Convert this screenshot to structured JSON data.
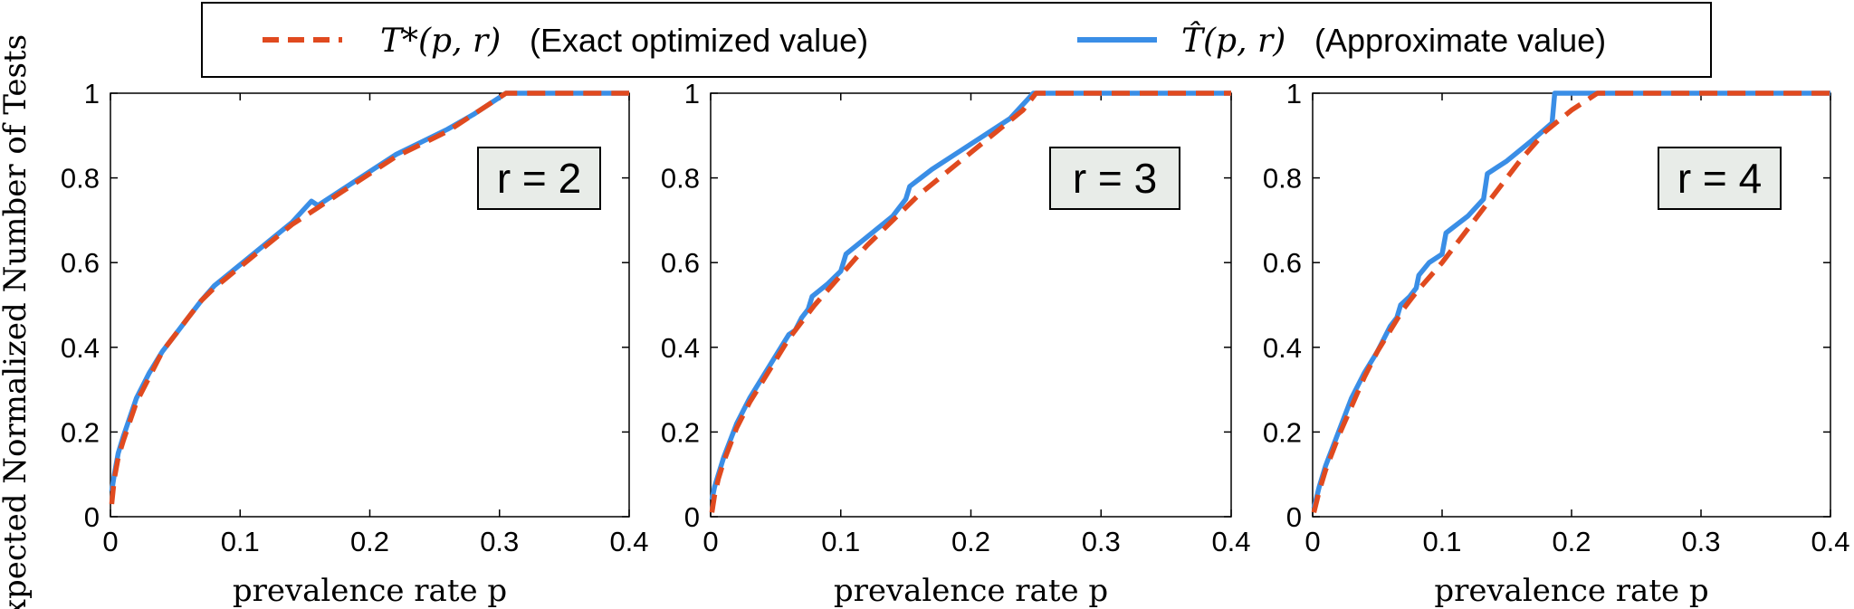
{
  "legend": {
    "entries": [
      {
        "symbol": "T*(p, r)",
        "label": "(Exact optimized value)",
        "color": "#e04a1f",
        "style": "dashed"
      },
      {
        "symbol": "T̂(p, r)",
        "label": "(Approximate value)",
        "color": "#3a8ee6",
        "style": "solid"
      }
    ]
  },
  "ylabel": "Expected Normalized Number of Tests",
  "colors": {
    "exact": "#e04a1f",
    "approx": "#3a8ee6",
    "annotation_bg": "#e8ece8"
  },
  "chart_data": [
    {
      "type": "line",
      "annotation": "r = 2",
      "xlabel": "prevalence rate p",
      "xlim": [
        0,
        0.4
      ],
      "ylim": [
        0,
        1
      ],
      "xticks": [
        "0",
        "0.1",
        "0.2",
        "0.3",
        "0.4"
      ],
      "yticks": [
        "0",
        "0.2",
        "0.4",
        "0.6",
        "0.8",
        "1"
      ],
      "series": [
        {
          "name": "T*(p, r)",
          "points": [
            [
              0.001,
              0.03
            ],
            [
              0.003,
              0.09
            ],
            [
              0.006,
              0.14
            ],
            [
              0.01,
              0.18
            ],
            [
              0.02,
              0.27
            ],
            [
              0.03,
              0.33
            ],
            [
              0.04,
              0.39
            ],
            [
              0.05,
              0.43
            ],
            [
              0.06,
              0.47
            ],
            [
              0.07,
              0.51
            ],
            [
              0.08,
              0.54
            ],
            [
              0.1,
              0.59
            ],
            [
              0.12,
              0.64
            ],
            [
              0.14,
              0.69
            ],
            [
              0.16,
              0.73
            ],
            [
              0.18,
              0.77
            ],
            [
              0.2,
              0.81
            ],
            [
              0.22,
              0.85
            ],
            [
              0.24,
              0.88
            ],
            [
              0.26,
              0.91
            ],
            [
              0.28,
              0.95
            ],
            [
              0.305,
              1.0
            ],
            [
              0.4,
              1.0
            ]
          ]
        },
        {
          "name": "T̂(p, r)",
          "points": [
            [
              0.001,
              0.06
            ],
            [
              0.003,
              0.1
            ],
            [
              0.006,
              0.15
            ],
            [
              0.01,
              0.19
            ],
            [
              0.02,
              0.28
            ],
            [
              0.03,
              0.34
            ],
            [
              0.04,
              0.39
            ],
            [
              0.05,
              0.43
            ],
            [
              0.06,
              0.47
            ],
            [
              0.07,
              0.51
            ],
            [
              0.08,
              0.545
            ],
            [
              0.1,
              0.595
            ],
            [
              0.12,
              0.645
            ],
            [
              0.14,
              0.695
            ],
            [
              0.155,
              0.745
            ],
            [
              0.16,
              0.735
            ],
            [
              0.18,
              0.775
            ],
            [
              0.2,
              0.815
            ],
            [
              0.22,
              0.855
            ],
            [
              0.24,
              0.885
            ],
            [
              0.26,
              0.915
            ],
            [
              0.28,
              0.95
            ],
            [
              0.305,
              1.0
            ],
            [
              0.4,
              1.0
            ]
          ]
        }
      ]
    },
    {
      "type": "line",
      "annotation": "r = 3",
      "xlabel": "prevalence rate p",
      "xlim": [
        0,
        0.4
      ],
      "ylim": [
        0,
        1
      ],
      "xticks": [
        "0",
        "0.1",
        "0.2",
        "0.3",
        "0.4"
      ],
      "yticks": [
        "0",
        "0.2",
        "0.4",
        "0.6",
        "0.8",
        "1"
      ],
      "series": [
        {
          "name": "T*(p, r)",
          "points": [
            [
              0.001,
              0.01
            ],
            [
              0.003,
              0.05
            ],
            [
              0.006,
              0.09
            ],
            [
              0.01,
              0.13
            ],
            [
              0.02,
              0.21
            ],
            [
              0.03,
              0.27
            ],
            [
              0.04,
              0.32
            ],
            [
              0.05,
              0.37
            ],
            [
              0.06,
              0.42
            ],
            [
              0.07,
              0.46
            ],
            [
              0.08,
              0.5
            ],
            [
              0.1,
              0.57
            ],
            [
              0.12,
              0.64
            ],
            [
              0.14,
              0.7
            ],
            [
              0.16,
              0.76
            ],
            [
              0.18,
              0.81
            ],
            [
              0.2,
              0.86
            ],
            [
              0.22,
              0.91
            ],
            [
              0.24,
              0.96
            ],
            [
              0.25,
              1.0
            ],
            [
              0.4,
              1.0
            ]
          ]
        },
        {
          "name": "T̂(p, r)",
          "points": [
            [
              0.001,
              0.04
            ],
            [
              0.003,
              0.07
            ],
            [
              0.006,
              0.1
            ],
            [
              0.01,
              0.14
            ],
            [
              0.02,
              0.22
            ],
            [
              0.03,
              0.28
            ],
            [
              0.04,
              0.33
            ],
            [
              0.05,
              0.38
            ],
            [
              0.06,
              0.43
            ],
            [
              0.065,
              0.44
            ],
            [
              0.07,
              0.47
            ],
            [
              0.075,
              0.49
            ],
            [
              0.078,
              0.52
            ],
            [
              0.09,
              0.55
            ],
            [
              0.1,
              0.58
            ],
            [
              0.104,
              0.62
            ],
            [
              0.12,
              0.66
            ],
            [
              0.14,
              0.71
            ],
            [
              0.15,
              0.75
            ],
            [
              0.153,
              0.78
            ],
            [
              0.17,
              0.82
            ],
            [
              0.19,
              0.86
            ],
            [
              0.21,
              0.9
            ],
            [
              0.23,
              0.94
            ],
            [
              0.248,
              1.0
            ],
            [
              0.4,
              1.0
            ]
          ]
        }
      ]
    },
    {
      "type": "line",
      "annotation": "r = 4",
      "xlabel": "prevalence rate p",
      "xlim": [
        0,
        0.4
      ],
      "ylim": [
        0,
        1
      ],
      "xticks": [
        "0",
        "0.1",
        "0.2",
        "0.3",
        "0.4"
      ],
      "yticks": [
        "0",
        "0.2",
        "0.4",
        "0.6",
        "0.8",
        "1"
      ],
      "series": [
        {
          "name": "T*(p, r)",
          "points": [
            [
              0.001,
              0.01
            ],
            [
              0.005,
              0.06
            ],
            [
              0.01,
              0.11
            ],
            [
              0.02,
              0.19
            ],
            [
              0.03,
              0.26
            ],
            [
              0.04,
              0.33
            ],
            [
              0.05,
              0.39
            ],
            [
              0.06,
              0.44
            ],
            [
              0.07,
              0.49
            ],
            [
              0.08,
              0.53
            ],
            [
              0.1,
              0.6
            ],
            [
              0.12,
              0.68
            ],
            [
              0.14,
              0.76
            ],
            [
              0.16,
              0.84
            ],
            [
              0.18,
              0.91
            ],
            [
              0.2,
              0.96
            ],
            [
              0.22,
              1.0
            ],
            [
              0.4,
              1.0
            ]
          ]
        },
        {
          "name": "T̂(p, r)",
          "points": [
            [
              0.001,
              0.02
            ],
            [
              0.005,
              0.07
            ],
            [
              0.01,
              0.12
            ],
            [
              0.02,
              0.2
            ],
            [
              0.03,
              0.28
            ],
            [
              0.04,
              0.34
            ],
            [
              0.05,
              0.39
            ],
            [
              0.055,
              0.42
            ],
            [
              0.06,
              0.45
            ],
            [
              0.065,
              0.47
            ],
            [
              0.068,
              0.5
            ],
            [
              0.075,
              0.52
            ],
            [
              0.08,
              0.54
            ],
            [
              0.082,
              0.57
            ],
            [
              0.09,
              0.6
            ],
            [
              0.1,
              0.62
            ],
            [
              0.103,
              0.67
            ],
            [
              0.12,
              0.71
            ],
            [
              0.132,
              0.75
            ],
            [
              0.135,
              0.81
            ],
            [
              0.15,
              0.84
            ],
            [
              0.17,
              0.89
            ],
            [
              0.185,
              0.93
            ],
            [
              0.187,
              1.0
            ],
            [
              0.4,
              1.0
            ]
          ]
        }
      ]
    }
  ]
}
